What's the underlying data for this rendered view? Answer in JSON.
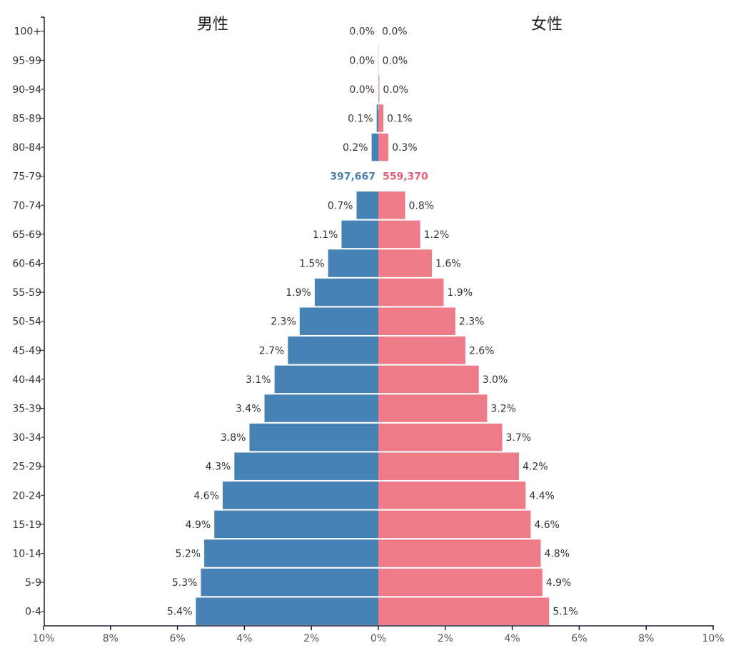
{
  "chart_data": {
    "type": "bar",
    "categories": [
      "0-4",
      "5-9",
      "10-14",
      "15-19",
      "20-24",
      "25-29",
      "30-34",
      "35-39",
      "40-44",
      "45-49",
      "50-54",
      "55-59",
      "60-64",
      "65-69",
      "70-74",
      "75-79",
      "80-84",
      "85-89",
      "90-94",
      "95-99",
      "100+"
    ],
    "series": [
      {
        "name": "男性",
        "side": "left",
        "color": "#4682b4",
        "values": [
          5.45,
          5.3,
          5.2,
          4.9,
          4.65,
          4.3,
          3.85,
          3.4,
          3.1,
          2.7,
          2.35,
          1.9,
          1.5,
          1.1,
          0.65,
          null,
          0.2,
          0.05,
          0.0,
          0.0,
          0.0
        ],
        "labels": [
          "5.4%",
          "5.3%",
          "5.2%",
          "4.9%",
          "4.6%",
          "4.3%",
          "3.8%",
          "3.4%",
          "3.1%",
          "2.7%",
          "2.3%",
          "1.9%",
          "1.5%",
          "1.1%",
          "0.7%",
          "397,667",
          "0.2%",
          "0.1%",
          "0.0%",
          "0.0%",
          "0.0%"
        ]
      },
      {
        "name": "女性",
        "side": "right",
        "color": "#ee7b87",
        "values": [
          5.1,
          4.9,
          4.85,
          4.55,
          4.4,
          4.2,
          3.7,
          3.25,
          3.0,
          2.6,
          2.3,
          1.95,
          1.6,
          1.25,
          0.8,
          null,
          0.3,
          0.15,
          0.03,
          0.01,
          0.0
        ],
        "labels": [
          "5.1%",
          "4.9%",
          "4.8%",
          "4.6%",
          "4.4%",
          "4.2%",
          "3.7%",
          "3.2%",
          "3.0%",
          "2.6%",
          "2.3%",
          "1.9%",
          "1.6%",
          "1.2%",
          "0.8%",
          "559,370",
          "0.3%",
          "0.1%",
          "0.0%",
          "0.0%",
          "0.0%"
        ]
      }
    ],
    "highlight": {
      "category": "75-79",
      "male_count": "397,667",
      "female_count": "559,370",
      "male_color": "#4a7fb2",
      "female_color": "#e0607a"
    },
    "xlim": [
      -10,
      10
    ],
    "x_ticks": [
      "10%",
      "8%",
      "6%",
      "4%",
      "2%",
      "0%",
      "2%",
      "4%",
      "6%",
      "8%",
      "10%"
    ],
    "male_title": "男性",
    "female_title": "女性",
    "grid": false,
    "axis_color": "#1f1f3a"
  }
}
